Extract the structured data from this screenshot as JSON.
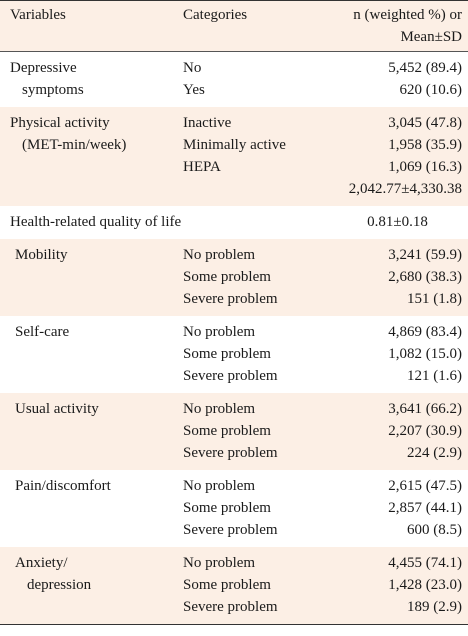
{
  "header": {
    "columns": [
      "Variables",
      "Categories",
      [
        "n (weighted %) or",
        "Mean±SD"
      ]
    ]
  },
  "groups": [
    {
      "variable": [
        "Depressive",
        "symptoms"
      ],
      "rows": [
        [
          "No",
          "5,452 (89.4)"
        ],
        [
          "Yes",
          "620 (10.6)"
        ]
      ]
    },
    {
      "variable": [
        "Physical activity",
        "(MET-min/week)"
      ],
      "rows": [
        [
          "Inactive",
          "3,045 (47.8)"
        ],
        [
          "Minimally active",
          "1,958 (35.9)"
        ],
        [
          "HEPA",
          "1,069 (16.3)"
        ]
      ],
      "mean": "2,042.77±4,330.38"
    },
    {
      "variable": [
        "Health-related quality of life"
      ],
      "mean": "0.81±0.18",
      "dimensions": [
        {
          "variable": [
            "Mobility"
          ],
          "rows": [
            [
              "No problem",
              "3,241 (59.9)"
            ],
            [
              "Some problem",
              "2,680 (38.3)"
            ],
            [
              "Severe problem",
              "151 (1.8)"
            ]
          ]
        },
        {
          "variable": [
            "Self-care"
          ],
          "rows": [
            [
              "No problem",
              "4,869 (83.4)"
            ],
            [
              "Some problem",
              "1,082 (15.0)"
            ],
            [
              "Severe problem",
              "121 (1.6)"
            ]
          ]
        },
        {
          "variable": [
            "Usual activity"
          ],
          "rows": [
            [
              "No problem",
              "3,641 (66.2)"
            ],
            [
              "Some problem",
              "2,207 (30.9)"
            ],
            [
              "Severe problem",
              "224 (2.9)"
            ]
          ]
        },
        {
          "variable": [
            "Pain/discomfort"
          ],
          "rows": [
            [
              "No problem",
              "2,615 (47.5)"
            ],
            [
              "Some problem",
              "2,857 (44.1)"
            ],
            [
              "Severe problem",
              "600 (8.5)"
            ]
          ]
        },
        {
          "variable": [
            "Anxiety/",
            "depression"
          ],
          "rows": [
            [
              "No problem",
              "4,455 (74.1)"
            ],
            [
              "Some problem",
              "1,428 (23.0)"
            ],
            [
              "Severe problem",
              "189 (2.9)"
            ]
          ]
        }
      ]
    }
  ]
}
